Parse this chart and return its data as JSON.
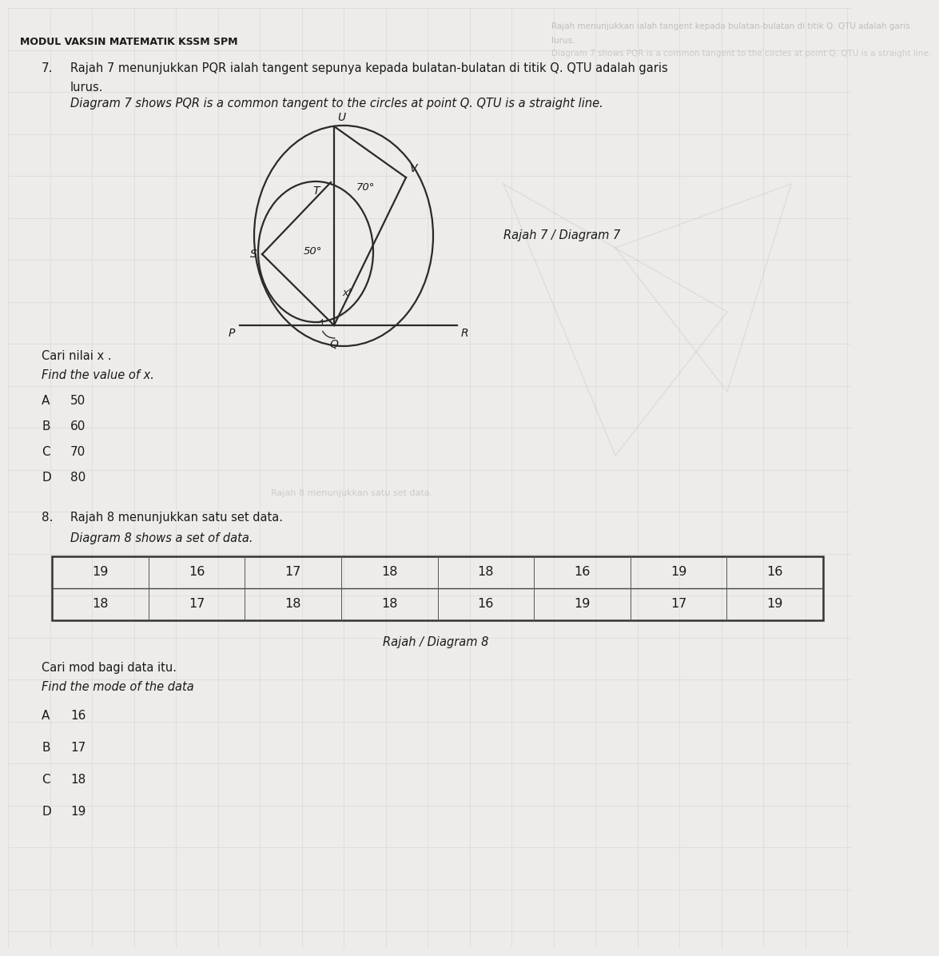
{
  "page_bg": "#edecea",
  "header_text": "MODUL VAKSIN MATEMATIK KSSM SPM",
  "q7_number": "7.",
  "q7_malay_line1": "Rajah 7 menunjukkan PQR ialah tangent sepunya kepada bulatan-bulatan di titik Q. QTU adalah garis",
  "q7_malay_line2": "lurus.",
  "q7_english": "Diagram 7 shows PQR is a common tangent to the circles at point Q. QTU is a straight line.",
  "diagram7_label": "Rajah 7 / Diagram 7",
  "q7_find_malay": "Cari nilai x .",
  "q7_find_english": "Find the value of x.",
  "q7_options_letters": [
    "A",
    "B",
    "C",
    "D"
  ],
  "q7_options_values": [
    "50",
    "60",
    "70",
    "80"
  ],
  "q8_number": "8.",
  "q8_malay": "Rajah 8 menunjukkan satu set data.",
  "q8_english": "Diagram 8 shows a set of data.",
  "table_row1": [
    "19",
    "16",
    "17",
    "18",
    "18",
    "16",
    "19",
    "16"
  ],
  "table_row2": [
    "18",
    "17",
    "18",
    "18",
    "16",
    "19",
    "17",
    "19"
  ],
  "diagram8_label": "Rajah / Diagram 8",
  "q8_find_malay": "Cari mod bagi data itu.",
  "q8_find_english": "Find the mode of the data",
  "q8_options_letters": [
    "A",
    "B",
    "C",
    "D"
  ],
  "q8_options_values": [
    "16",
    "17",
    "18",
    "19"
  ],
  "grid_color": "#cccccc",
  "text_color": "#1a1a1a",
  "circle_color": "#2a2a2a",
  "line_color": "#2a2a2a",
  "watermark_text": "Rajah menunjuk ialah tangent kepada bulatan-bulatan di titik Q. QTU adalah garis",
  "top_right_text1": "Rajah 7 menunjukkan PQR ialah tangent sepunya kepada bulatan-bulatan di titik Q. QTU adalah garis",
  "top_right_text2": "lurus.",
  "top_right_text3": "Diagram 7 shows PQR is a common tangent to the circles at point Q. QTU is a straight line."
}
